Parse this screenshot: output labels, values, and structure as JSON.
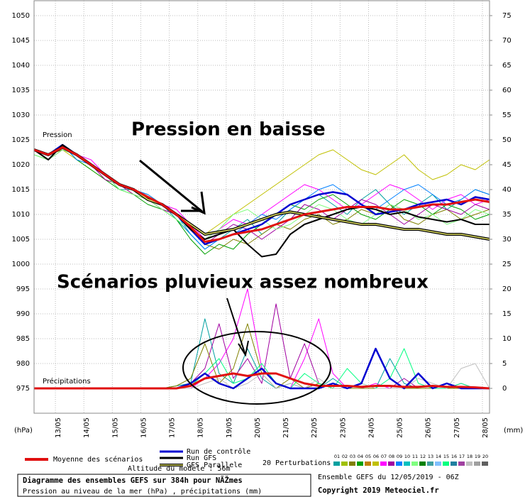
{
  "chart_data": {
    "type": "line",
    "title": "Diagramme des ensembles GEFS sur 384h pour NÃŽmes",
    "subtitle": "Pression au niveau de la mer (hPa) , précipitations (mm)",
    "run_label": "Ensemble GEFS du 12/05/2019 - 06Z",
    "copyright": "Copyright 2019 Meteociel.fr",
    "altitude": "Altitude du modèle : 56m",
    "ylabel": "(hPa)",
    "y2label": "(mm)",
    "pressure_label": "Pression",
    "precip_label": "Précipitations",
    "annotations": [
      "Pression en baisse",
      "Scénarios pluvieux assez nombreux"
    ],
    "perturbations_label": "20 Perturbations",
    "perturbation_legend": [
      {
        "label": "01",
        "color": "#00a0a0"
      },
      {
        "label": "02",
        "color": "#a0c000"
      },
      {
        "label": "03",
        "color": "#808000"
      },
      {
        "label": "04",
        "color": "#00a000"
      },
      {
        "label": "05",
        "color": "#c08000"
      },
      {
        "label": "06",
        "color": "#c0c000"
      },
      {
        "label": "07",
        "color": "#ff00ff"
      },
      {
        "label": "08",
        "color": "#a000a0"
      },
      {
        "label": "09",
        "color": "#0080ff"
      },
      {
        "label": "10",
        "color": "#00c0c0"
      },
      {
        "label": "11",
        "color": "#80ff80"
      },
      {
        "label": "12",
        "color": "#008000"
      },
      {
        "label": "13",
        "color": "#40a0a0"
      },
      {
        "label": "14",
        "color": "#80c0ff"
      },
      {
        "label": "15",
        "color": "#00ff80"
      },
      {
        "label": "16",
        "color": "#2080a0"
      },
      {
        "label": "17",
        "color": "#a040a0"
      },
      {
        "label": "18",
        "color": "#c0c0c0"
      },
      {
        "label": "19",
        "color": "#a0a0a0"
      },
      {
        "label": "20",
        "color": "#606060"
      }
    ],
    "legend": [
      {
        "name": "Moyenne des scénarios",
        "color": "#e01010"
      },
      {
        "name": "Run de contrôle",
        "color": "#0000d0"
      },
      {
        "name": "Run GFS",
        "color": "#000000"
      },
      {
        "name": "GFS Parallele",
        "color": "#e0e060"
      }
    ],
    "xlim": [
      0,
      384
    ],
    "xticks": [
      {
        "value": 18,
        "label": "13/05"
      },
      {
        "value": 42,
        "label": "14/05"
      },
      {
        "value": 66,
        "label": "15/05"
      },
      {
        "value": 90,
        "label": "16/05"
      },
      {
        "value": 114,
        "label": "17/05"
      },
      {
        "value": 138,
        "label": "18/05"
      },
      {
        "value": 162,
        "label": "19/05"
      },
      {
        "value": 186,
        "label": "20/05"
      },
      {
        "value": 210,
        "label": "21/05"
      },
      {
        "value": 234,
        "label": "22/05"
      },
      {
        "value": 258,
        "label": "23/05"
      },
      {
        "value": 282,
        "label": "24/05"
      },
      {
        "value": 306,
        "label": "25/05"
      },
      {
        "value": 330,
        "label": "26/05"
      },
      {
        "value": 354,
        "label": "27/05"
      },
      {
        "value": 378,
        "label": "28/05"
      }
    ],
    "ylim": [
      970,
      1053
    ],
    "yticks": [
      975,
      980,
      985,
      990,
      995,
      1000,
      1005,
      1010,
      1015,
      1020,
      1025,
      1030,
      1035,
      1040,
      1045,
      1050
    ],
    "y2lim": [
      -5,
      78
    ],
    "y2ticks": [
      0,
      5,
      10,
      15,
      20,
      25,
      30,
      35,
      40,
      45,
      50,
      55,
      60,
      65,
      70,
      75
    ],
    "grid": true,
    "x": [
      0,
      12,
      24,
      36,
      48,
      60,
      72,
      84,
      96,
      108,
      120,
      132,
      144,
      156,
      168,
      180,
      192,
      204,
      216,
      228,
      240,
      252,
      264,
      276,
      288,
      300,
      312,
      324,
      336,
      348,
      360,
      372,
      384
    ],
    "series": [
      {
        "name": "01",
        "color": "#00a0a0",
        "linewidth": 1,
        "values": [
          1023,
          1022,
          1024,
          1022,
          1020,
          1018,
          1015,
          1015,
          1013,
          1012,
          1009,
          1006,
          1003,
          1005,
          1007,
          1009,
          1006,
          1008,
          1011,
          1013,
          1014,
          1012,
          1010,
          1013,
          1015,
          1012,
          1010,
          1012,
          1014,
          1011,
          1013,
          1015,
          1014
        ]
      },
      {
        "name": "06",
        "color": "#c0c000",
        "linewidth": 1,
        "values": [
          1023,
          1021,
          1023,
          1021,
          1019,
          1017,
          1016,
          1014,
          1013,
          1011,
          1010,
          1008,
          1006,
          1008,
          1010,
          1012,
          1014,
          1016,
          1018,
          1020,
          1022,
          1023,
          1021,
          1019,
          1018,
          1020,
          1022,
          1019,
          1017,
          1018,
          1020,
          1019,
          1021
        ]
      },
      {
        "name": "03",
        "color": "#808000",
        "linewidth": 1,
        "values": [
          1023,
          1022,
          1023,
          1022,
          1020,
          1018,
          1016,
          1015,
          1014,
          1012,
          1010,
          1007,
          1004,
          1003,
          1005,
          1004,
          1006,
          1008,
          1007,
          1009,
          1010,
          1008,
          1009,
          1011,
          1010,
          1012,
          1009,
          1008,
          1010,
          1011,
          1009,
          1010,
          1011
        ]
      },
      {
        "name": "04",
        "color": "#00a000",
        "linewidth": 1,
        "values": [
          1022,
          1021,
          1024,
          1021,
          1019,
          1017,
          1015,
          1014,
          1012,
          1011,
          1009,
          1005,
          1002,
          1004,
          1003,
          1006,
          1008,
          1010,
          1012,
          1011,
          1013,
          1014,
          1012,
          1010,
          1009,
          1011,
          1013,
          1012,
          1010,
          1012,
          1011,
          1009,
          1010
        ]
      },
      {
        "name": "07",
        "color": "#ff00ff",
        "linewidth": 1,
        "values": [
          1023,
          1022,
          1024,
          1022,
          1021,
          1018,
          1016,
          1015,
          1013,
          1012,
          1011,
          1008,
          1005,
          1007,
          1009,
          1008,
          1010,
          1012,
          1014,
          1016,
          1015,
          1013,
          1011,
          1012,
          1014,
          1016,
          1015,
          1013,
          1011,
          1013,
          1014,
          1012,
          1013
        ]
      },
      {
        "name": "08",
        "color": "#a000a0",
        "linewidth": 1,
        "values": [
          1023,
          1021,
          1023,
          1022,
          1020,
          1017,
          1016,
          1014,
          1013,
          1011,
          1010,
          1007,
          1004,
          1006,
          1008,
          1007,
          1005,
          1007,
          1009,
          1012,
          1011,
          1009,
          1011,
          1013,
          1012,
          1010,
          1008,
          1010,
          1012,
          1011,
          1010,
          1012,
          1011
        ]
      },
      {
        "name": "09",
        "color": "#0080ff",
        "linewidth": 1,
        "values": [
          1023,
          1022,
          1024,
          1021,
          1020,
          1018,
          1016,
          1015,
          1014,
          1012,
          1010,
          1006,
          1003,
          1005,
          1006,
          1008,
          1010,
          1009,
          1011,
          1013,
          1015,
          1016,
          1014,
          1012,
          1011,
          1013,
          1015,
          1016,
          1014,
          1012,
          1013,
          1015,
          1014
        ]
      },
      {
        "name": "11",
        "color": "#80ff80",
        "linewidth": 1,
        "values": [
          1022,
          1021,
          1023,
          1022,
          1020,
          1018,
          1015,
          1014,
          1013,
          1011,
          1009,
          1007,
          1005,
          1007,
          1010,
          1011,
          1009,
          1007,
          1008,
          1010,
          1012,
          1011,
          1009,
          1008,
          1010,
          1012,
          1011,
          1009,
          1010,
          1008,
          1009,
          1011,
          1010
        ]
      },
      {
        "name": "07",
        "color": "#ff00ff",
        "linewidth": 1,
        "axis": "y2",
        "values": [
          0,
          0,
          0,
          0,
          0,
          0,
          0,
          0,
          0,
          0,
          0,
          0,
          2,
          5,
          10,
          20,
          4,
          1,
          0,
          6,
          14,
          3,
          0,
          0,
          1,
          0,
          0,
          0,
          0,
          0,
          1,
          0,
          0
        ]
      },
      {
        "name": "01",
        "color": "#00a0a0",
        "linewidth": 1,
        "axis": "y2",
        "values": [
          0,
          0,
          0,
          0,
          0,
          0,
          0,
          0,
          0,
          0,
          0.5,
          1,
          14,
          3,
          1,
          8,
          2,
          0,
          1,
          0,
          0,
          2,
          0,
          0,
          0,
          6,
          1,
          0,
          0,
          0,
          0,
          0,
          0
        ]
      },
      {
        "name": "08",
        "color": "#a000a0",
        "linewidth": 1,
        "axis": "y2",
        "values": [
          0,
          0,
          0,
          0,
          0,
          0,
          0,
          0,
          0,
          0,
          0,
          1,
          4,
          13,
          2,
          6,
          1,
          17,
          2,
          9,
          1,
          0,
          0,
          0,
          0,
          0,
          2,
          0,
          0,
          0,
          0,
          0,
          0
        ]
      },
      {
        "name": "03",
        "color": "#808000",
        "linewidth": 1,
        "axis": "y2",
        "values": [
          0,
          0,
          0,
          0,
          0,
          0,
          0,
          0,
          0,
          0,
          0.5,
          2,
          9,
          1,
          4,
          13,
          3,
          0,
          2,
          0,
          1,
          0,
          0,
          0,
          0,
          0,
          0,
          0,
          0,
          0,
          0,
          0,
          0
        ]
      },
      {
        "name": "15",
        "color": "#00ff80",
        "linewidth": 1,
        "axis": "y2",
        "values": [
          0,
          0,
          0,
          0,
          0,
          0,
          0,
          0,
          0,
          0,
          0,
          0.5,
          3,
          6,
          1,
          2,
          5,
          1,
          0,
          3,
          1,
          0,
          4,
          1,
          0,
          2,
          8,
          1,
          0,
          0,
          1,
          0,
          0
        ]
      },
      {
        "name": "18",
        "color": "#c0c0c0",
        "linewidth": 1,
        "axis": "y2",
        "values": [
          0,
          0,
          0,
          0,
          0,
          0,
          0,
          0,
          0,
          0,
          0,
          0,
          1,
          2,
          0,
          1,
          3,
          0,
          1,
          0,
          2,
          0,
          0,
          1,
          0,
          0,
          0,
          2,
          1,
          0,
          4,
          5,
          0
        ]
      },
      {
        "name": "Run de contrôle",
        "color": "#0000d0",
        "linewidth": 2.5,
        "axis": "y2",
        "values": [
          0,
          0,
          0,
          0,
          0,
          0,
          0,
          0,
          0,
          0,
          0,
          1,
          3,
          1,
          0,
          2,
          4,
          1,
          0,
          0,
          0,
          1,
          0,
          1,
          8,
          2,
          0,
          3,
          0,
          1,
          0,
          0,
          0
        ]
      },
      {
        "name": "Run de contrôle",
        "color": "#0000d0",
        "linewidth": 2.5,
        "values": [
          1023,
          1022,
          1024,
          1022,
          1020,
          1018,
          1016,
          1015,
          1013,
          1012,
          1010,
          1007,
          1004,
          1005,
          1006,
          1007,
          1008,
          1010,
          1012,
          1013,
          1014,
          1014.5,
          1014,
          1012,
          1010,
          1010.5,
          1011,
          1012,
          1012.5,
          1013,
          1012,
          1013.5,
          1013
        ]
      },
      {
        "name": "Run GFS",
        "color": "#000000",
        "linewidth": 2,
        "values": [
          1023,
          1021,
          1024,
          1022,
          1020,
          1018,
          1016,
          1015,
          1013,
          1012,
          1010,
          1007,
          1005,
          1006,
          1007,
          1004,
          1001.5,
          1002,
          1006,
          1008,
          1009,
          1010,
          1011,
          1011.5,
          1011,
          1010,
          1010.5,
          1009.5,
          1009,
          1008.5,
          1009,
          1008,
          1008
        ]
      },
      {
        "name": "GFS Parallele",
        "color": "#e0e060",
        "linewidth": 1.5,
        "outline": "#000000",
        "values": [
          1023,
          1022,
          1023.5,
          1022,
          1020,
          1018,
          1016,
          1015,
          1013,
          1012,
          1010,
          1008,
          1006,
          1006.5,
          1007,
          1008,
          1009,
          1010,
          1010.5,
          1010,
          1009.5,
          1009,
          1008.5,
          1008,
          1008,
          1007.5,
          1007,
          1007,
          1006.5,
          1006,
          1006,
          1005.5,
          1005
        ]
      },
      {
        "name": "Moyenne des scénarios",
        "color": "#e01010",
        "linewidth": 3,
        "axis": "y2",
        "values": [
          0,
          0,
          0,
          0,
          0,
          0,
          0,
          0,
          0,
          0,
          0,
          0.5,
          2,
          2.5,
          3,
          2.5,
          3,
          3,
          2,
          1,
          0.5,
          0.5,
          0.5,
          0.3,
          0.5,
          0.5,
          0.3,
          0.3,
          0.5,
          0.3,
          0.3,
          0.2,
          0
        ]
      },
      {
        "name": "Moyenne des scénarios",
        "color": "#e01010",
        "linewidth": 3,
        "values": [
          1023,
          1022,
          1023.5,
          1022,
          1020,
          1018,
          1016,
          1015,
          1013.5,
          1012,
          1010,
          1007.5,
          1004.5,
          1005,
          1006,
          1006.5,
          1007,
          1008,
          1009,
          1010,
          1010.5,
          1011,
          1011.5,
          1011.5,
          1011.5,
          1011,
          1011,
          1011.5,
          1012,
          1012,
          1012.5,
          1013,
          1012.5
        ]
      }
    ]
  }
}
